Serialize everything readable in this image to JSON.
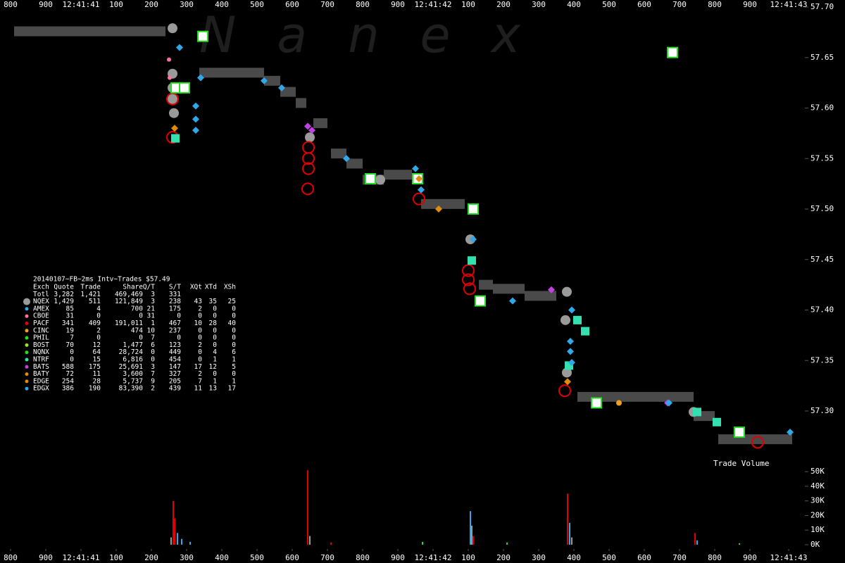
{
  "chart_data": {
    "type": "nanex-trades",
    "watermark": "Nanex",
    "volume_label": "Trade Volume",
    "xlim": [
      -30,
      2250
    ],
    "xticks": [
      {
        "value": 0,
        "label": "800"
      },
      {
        "value": 100,
        "label": "900"
      },
      {
        "value": 200,
        "label": "12:41:41"
      },
      {
        "value": 300,
        "label": "100"
      },
      {
        "value": 400,
        "label": "200"
      },
      {
        "value": 500,
        "label": "300"
      },
      {
        "value": 600,
        "label": "400"
      },
      {
        "value": 700,
        "label": "500"
      },
      {
        "value": 800,
        "label": "600"
      },
      {
        "value": 900,
        "label": "700"
      },
      {
        "value": 1000,
        "label": "800"
      },
      {
        "value": 1100,
        "label": "900"
      },
      {
        "value": 1200,
        "label": "12:41:42"
      },
      {
        "value": 1300,
        "label": "100"
      },
      {
        "value": 1400,
        "label": "200"
      },
      {
        "value": 1500,
        "label": "300"
      },
      {
        "value": 1600,
        "label": "400"
      },
      {
        "value": 1700,
        "label": "500"
      },
      {
        "value": 1800,
        "label": "600"
      },
      {
        "value": 1900,
        "label": "700"
      },
      {
        "value": 2000,
        "label": "800"
      },
      {
        "value": 2100,
        "label": "900"
      },
      {
        "value": 2210,
        "label": "12:41:43"
      }
    ],
    "ylim": [
      57.254,
      57.707
    ],
    "yticks": [
      {
        "value": 57.7,
        "label": "57.70"
      },
      57.65,
      {
        "value": 57.6,
        "label": "57.60"
      },
      57.55,
      {
        "value": 57.5,
        "label": "57.50"
      },
      57.45,
      {
        "value": 57.4,
        "label": "57.40"
      },
      57.35,
      {
        "value": 57.3,
        "label": "57.30"
      }
    ],
    "vol_ylim": [
      0,
      53000
    ],
    "vol_yticks": [
      {
        "value": 50000,
        "label": "50K"
      },
      {
        "value": 40000,
        "label": "40K"
      },
      {
        "value": 30000,
        "label": "30K"
      },
      {
        "value": 20000,
        "label": "20K"
      },
      {
        "value": 10000,
        "label": "10K"
      },
      {
        "value": 0,
        "label": "0K"
      }
    ],
    "quote_bars": {
      "color": "#4a4a4a",
      "x0": [
        10,
        536,
        720,
        766,
        810,
        860,
        910,
        954,
        1000,
        1060,
        1166,
        1330,
        1370,
        1460,
        1610,
        1940,
        2010
      ],
      "x1": [
        440,
        720,
        766,
        810,
        840,
        900,
        954,
        1000,
        1060,
        1140,
        1290,
        1370,
        1460,
        1550,
        1940,
        2000,
        2220
      ],
      "values": [
        57.676,
        57.635,
        57.627,
        57.616,
        57.605,
        57.585,
        57.555,
        57.545,
        57.529,
        57.534,
        57.505,
        57.425,
        57.421,
        57.414,
        57.314,
        57.295,
        57.272
      ]
    },
    "series": [
      {
        "name": "NQEX",
        "color": "#9a9a9a",
        "shape": "circle",
        "size": 7,
        "x": [
          460,
          460,
          460,
          460,
          464,
          850,
          1050,
          1306,
          1580,
          1576,
          1580,
          1940
        ],
        "values": [
          57.679,
          57.634,
          57.62,
          57.609,
          57.595,
          57.571,
          57.529,
          57.47,
          57.418,
          57.39,
          57.338,
          57.299
        ]
      },
      {
        "name": "CBOE",
        "color": "#ff6fa0",
        "shape": "circle",
        "size": 3,
        "x": [
          450,
          452
        ],
        "values": [
          57.648,
          57.63
        ]
      },
      {
        "name": "PACF",
        "color": "#e00000",
        "shape": "ring",
        "size": 8,
        "x": [
          460,
          844,
          1160,
          1300,
          1300,
          1304,
          1574,
          2122,
          460,
          846,
          846,
          846
        ],
        "values": [
          57.571,
          57.52,
          57.51,
          57.439,
          57.43,
          57.421,
          57.32,
          57.269,
          57.609,
          57.54,
          57.55,
          57.561
        ]
      },
      {
        "name": "CINC",
        "color": "#f0a020",
        "shape": "circle",
        "size": 4,
        "x": [
          1728
        ],
        "values": [
          57.308
        ]
      },
      {
        "name": "NQNX",
        "color": "#22dd22",
        "shape": "square-outline",
        "size": 7,
        "x": [
          470,
          494,
          1022,
          1156,
          1314,
          1334,
          1664,
          2070,
          546,
          1880
        ],
        "values": [
          57.62,
          57.62,
          57.53,
          57.53,
          57.5,
          57.409,
          57.308,
          57.279,
          57.671,
          57.655
        ]
      },
      {
        "name": "NTRF",
        "color": "#33e0b0",
        "shape": "square",
        "size": 6,
        "x": [
          468,
          1310,
          1610,
          1632,
          1950,
          2006,
          1586
        ],
        "values": [
          57.57,
          57.449,
          57.39,
          57.379,
          57.299,
          57.289,
          57.345
        ]
      },
      {
        "name": "BATS",
        "color": "#c040e0",
        "shape": "diamond",
        "size": 5,
        "x": [
          844,
          856,
          1866,
          1536
        ],
        "values": [
          57.582,
          57.578,
          57.308,
          57.42
        ]
      },
      {
        "name": "EDGE",
        "color": "#e08a10",
        "shape": "diamond",
        "size": 5,
        "x": [
          466,
          1160,
          1582,
          1216
        ],
        "values": [
          57.58,
          57.53,
          57.329,
          57.5
        ]
      },
      {
        "name": "EDGX",
        "color": "#30a8e8",
        "shape": "diamond",
        "size": 5,
        "x": [
          480,
          526,
          526,
          526,
          720,
          770,
          954,
          1150,
          1166,
          1314,
          1426,
          1594,
          1590,
          1590,
          1594,
          1870,
          2214,
          540
        ],
        "values": [
          57.66,
          57.602,
          57.589,
          57.578,
          57.627,
          57.62,
          57.55,
          57.54,
          57.519,
          57.47,
          57.409,
          57.4,
          57.369,
          57.359,
          57.348,
          57.308,
          57.279,
          57.63
        ]
      }
    ],
    "volume": {
      "x": [
        456,
        462,
        466,
        474,
        486,
        510,
        844,
        850,
        1306,
        1310,
        1314,
        1582,
        1588,
        1594,
        1944,
        1950,
        2070,
        1170,
        1410,
        910
      ],
      "values": [
        5000,
        30000,
        18000,
        8000,
        4000,
        2000,
        51000,
        6000,
        23000,
        13000,
        6000,
        35000,
        15000,
        5000,
        8000,
        3000,
        1000,
        2000,
        1500,
        1500
      ],
      "colors": [
        "#9a9a9a",
        "#e00000",
        "#e00000",
        "#30a8e8",
        "#30a8e8",
        "#30a8e8",
        "#e00000",
        "#9a9a9a",
        "#30a8e8",
        "#9a9a9a",
        "#e00000",
        "#e00000",
        "#30a8e8",
        "#9a9a9a",
        "#e00000",
        "#30a8e8",
        "#22dd22",
        "#22dd22",
        "#22dd22",
        "#e00000"
      ]
    },
    "stats": {
      "title": "20140107~FB~2ms Intv~Trades $57.49",
      "columns": [
        "Exch",
        "Quote",
        "Trade",
        "Share",
        "Q/T",
        "S/T",
        "XQt",
        "XTd",
        "XSh"
      ],
      "row_colors": [
        null,
        "#9a9a9a",
        "#30a8e8",
        "#ff6fa0",
        "#e00000",
        "#f0a020",
        "#22dd22",
        "#a0e020",
        "#22dd22",
        "#33e0b0",
        "#c040e0",
        "#e08a10",
        "#e08a10",
        "#30a8e8"
      ],
      "rows": [
        [
          "Totl",
          "3,282",
          "1,421",
          "469,469",
          "3",
          "331"
        ],
        [
          "NQEX",
          "1,429",
          "511",
          "121,849",
          "3",
          "238",
          "43",
          "35",
          "25"
        ],
        [
          "AMEX",
          "85",
          "4",
          "700",
          "21",
          "175",
          "2",
          "0",
          "0"
        ],
        [
          "CBOE",
          "31",
          "0",
          "0",
          "31",
          "0",
          "0",
          "0",
          "0"
        ],
        [
          "PACF",
          "341",
          "409",
          "191,011",
          "1",
          "467",
          "10",
          "28",
          "40"
        ],
        [
          "CINC",
          "19",
          "2",
          "474",
          "10",
          "237",
          "0",
          "0",
          "0"
        ],
        [
          "PHIL",
          "7",
          "0",
          "0",
          "7",
          "0",
          "0",
          "0",
          "0"
        ],
        [
          "BOST",
          "70",
          "12",
          "1,477",
          "6",
          "123",
          "2",
          "0",
          "0"
        ],
        [
          "NQNX",
          "0",
          "64",
          "28,724",
          "0",
          "449",
          "0",
          "4",
          "6"
        ],
        [
          "NTRF",
          "0",
          "15",
          "6,816",
          "0",
          "454",
          "0",
          "1",
          "1"
        ],
        [
          "BATS",
          "588",
          "175",
          "25,691",
          "3",
          "147",
          "17",
          "12",
          "5"
        ],
        [
          "BATY",
          "72",
          "11",
          "3,600",
          "7",
          "327",
          "2",
          "0",
          "0"
        ],
        [
          "EDGE",
          "254",
          "28",
          "5,737",
          "9",
          "205",
          "7",
          "1",
          "1"
        ],
        [
          "EDGX",
          "386",
          "190",
          "83,390",
          "2",
          "439",
          "11",
          "13",
          "17"
        ]
      ]
    }
  }
}
